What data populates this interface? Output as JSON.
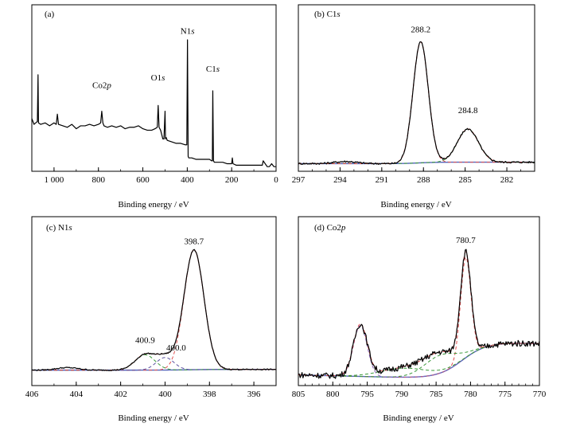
{
  "figure": {
    "panels": [
      {
        "id": "a",
        "label": "(a)",
        "xlabel": "Binding energy / eV",
        "xlim": [
          1100,
          0
        ],
        "xticks": [
          1000,
          800,
          600,
          400,
          200,
          0
        ],
        "xtick_labels": [
          "1 000",
          "800",
          "600",
          "400",
          "200",
          "0"
        ],
        "minor_step": 100,
        "peak_labels": [
          {
            "text_main": "Co2",
            "text_it": "p",
            "x": 785,
            "y": 0.55
          },
          {
            "text_main": "O1",
            "text_it": "s",
            "x": 532,
            "y": 0.6
          },
          {
            "text_main": "N1",
            "text_it": "s",
            "x": 399,
            "y": 0.92
          },
          {
            "text_main": "C1",
            "text_it": "s",
            "x": 285,
            "y": 0.66
          }
        ]
      },
      {
        "id": "b",
        "label": "(b) C1",
        "label_it": "s",
        "xlabel": "Binding energy / eV",
        "xlim": [
          297,
          280
        ],
        "xticks": [
          297,
          294,
          291,
          288,
          285,
          282
        ],
        "xtick_labels": [
          "297",
          "294",
          "291",
          "288",
          "285",
          "282"
        ],
        "minor_step": 1,
        "peak_labels": [
          {
            "text_main": "288.2",
            "x": 288.2,
            "y": 0.93
          },
          {
            "text_main": "284.8",
            "x": 284.8,
            "y": 0.37
          }
        ]
      },
      {
        "id": "c",
        "label": "(c) N1",
        "label_it": "s",
        "xlabel": "Binding energy / eV",
        "xlim": [
          406,
          395
        ],
        "xticks": [
          406,
          404,
          402,
          400,
          398,
          396
        ],
        "xtick_labels": [
          "406",
          "404",
          "402",
          "400",
          "398",
          "396"
        ],
        "minor_step": 1,
        "peak_labels": [
          {
            "text_main": "398.7",
            "x": 398.7,
            "y": 0.93
          },
          {
            "text_main": "400.9",
            "x": 400.9,
            "y": 0.22
          },
          {
            "text_main": "400.0",
            "x": 399.5,
            "y": 0.165
          }
        ]
      },
      {
        "id": "d",
        "label": "(d) Co2",
        "label_it": "p",
        "xlabel": "Binding energy / eV",
        "xlim": [
          805,
          770
        ],
        "xticks": [
          805,
          800,
          795,
          790,
          785,
          780,
          775,
          770
        ],
        "xtick_labels": [
          "805",
          "800",
          "795",
          "790",
          "785",
          "780",
          "775",
          "770"
        ],
        "minor_step": 1,
        "peak_labels": [
          {
            "text_main": "780.7",
            "x": 780.7,
            "y": 0.93
          }
        ]
      }
    ]
  },
  "chart_data": [
    {
      "type": "line",
      "panel": "a",
      "title": "(a)",
      "xlabel": "Binding energy / eV",
      "ylabel": "",
      "xlim": [
        1100,
        0
      ],
      "ylim": [
        0,
        1
      ],
      "yaxis_ticks": false,
      "grid": false,
      "annotations": [
        "Co2p",
        "O1s",
        "N1s",
        "C1s"
      ],
      "series": [
        {
          "color": "#000000",
          "style": "solid",
          "x": [
            1100,
            1090,
            1075,
            1072,
            1070,
            1060,
            1040,
            1020,
            1000,
            990,
            985,
            980,
            960,
            940,
            920,
            900,
            880,
            860,
            840,
            820,
            800,
            790,
            785,
            780,
            775,
            760,
            740,
            720,
            700,
            680,
            660,
            640,
            620,
            600,
            580,
            560,
            545,
            535,
            531,
            527,
            520,
            510,
            505,
            500,
            498,
            495,
            490,
            470,
            450,
            430,
            410,
            402,
            399,
            396,
            393,
            380,
            360,
            340,
            320,
            300,
            290,
            287,
            285,
            282,
            278,
            260,
            240,
            220,
            210,
            200,
            197,
            194,
            180,
            160,
            140,
            120,
            100,
            80,
            70,
            62,
            58,
            40,
            30,
            20,
            10,
            0
          ],
          "y": [
            0.34,
            0.3,
            0.32,
            0.64,
            0.31,
            0.3,
            0.31,
            0.29,
            0.31,
            0.3,
            0.37,
            0.3,
            0.29,
            0.28,
            0.3,
            0.27,
            0.29,
            0.29,
            0.3,
            0.29,
            0.3,
            0.31,
            0.39,
            0.31,
            0.29,
            0.28,
            0.29,
            0.28,
            0.29,
            0.27,
            0.28,
            0.28,
            0.29,
            0.27,
            0.26,
            0.26,
            0.27,
            0.28,
            0.43,
            0.28,
            0.26,
            0.2,
            0.2,
            0.39,
            0.2,
            0.21,
            0.19,
            0.18,
            0.17,
            0.17,
            0.16,
            0.16,
            0.88,
            0.08,
            0.07,
            0.07,
            0.06,
            0.06,
            0.06,
            0.06,
            0.05,
            0.05,
            0.53,
            0.05,
            0.04,
            0.04,
            0.04,
            0.03,
            0.03,
            0.03,
            0.07,
            0.03,
            0.02,
            0.02,
            0.02,
            0.02,
            0.02,
            0.02,
            0.02,
            0.02,
            0.05,
            0.01,
            0.01,
            0.03,
            0.01,
            0.01
          ]
        }
      ]
    },
    {
      "type": "line",
      "panel": "b",
      "title": "(b) C1s",
      "xlabel": "Binding energy / eV",
      "ylabel": "",
      "xlim": [
        297,
        280
      ],
      "ylim": [
        0,
        1
      ],
      "yaxis_ticks": false,
      "grid": false,
      "annotations": [
        "288.2",
        "284.8"
      ],
      "baseline": {
        "start": 0.03,
        "end": 0.02,
        "rise_center": 288.3,
        "rise_width": 0.6,
        "rise": 0.01
      },
      "components": [
        {
          "center": 288.2,
          "amp": 0.84,
          "sigma": 0.55,
          "color": "#e05050",
          "style": "dashed"
        },
        {
          "center": 284.8,
          "amp": 0.23,
          "sigma": 0.75,
          "color": "#3a9a3a",
          "style": "dashed"
        }
      ],
      "sum": {
        "color": "#d94848",
        "style": "dashed"
      },
      "background_curve": {
        "color": "#5566bb",
        "style": "solid"
      },
      "experimental": {
        "color": "#000000",
        "style": "solid",
        "noise": 0.006,
        "extra_bumps": [
          {
            "center": 293.6,
            "amp": 0.015,
            "sigma": 0.8
          }
        ]
      }
    },
    {
      "type": "line",
      "panel": "c",
      "title": "(c) N1s",
      "xlabel": "Binding energy / eV",
      "ylabel": "",
      "xlim": [
        406,
        395
      ],
      "ylim": [
        0,
        1
      ],
      "yaxis_ticks": false,
      "grid": false,
      "annotations": [
        "398.7",
        "400.9",
        "400.0"
      ],
      "baseline": {
        "start": 0.03,
        "end": 0.025,
        "rise_center": 399.0,
        "rise_width": 0.5,
        "rise": 0.0
      },
      "components": [
        {
          "center": 398.7,
          "amp": 0.86,
          "sigma": 0.45,
          "color": "#e05050",
          "style": "dashed"
        },
        {
          "center": 400.9,
          "amp": 0.11,
          "sigma": 0.45,
          "color": "#3a9a3a",
          "style": "dashed"
        },
        {
          "center": 400.0,
          "amp": 0.09,
          "sigma": 0.4,
          "color": "#5a4fa0",
          "style": "dashed"
        }
      ],
      "sum": {
        "color": "#d94848",
        "style": "dashed"
      },
      "background_curve": {
        "color": "#5566bb",
        "style": "solid"
      },
      "experimental": {
        "color": "#000000",
        "style": "solid",
        "noise": 0.004,
        "extra_bumps": [
          {
            "center": 404.4,
            "amp": 0.018,
            "sigma": 0.5
          }
        ]
      }
    },
    {
      "type": "line",
      "panel": "d",
      "title": "(d) Co2p",
      "xlabel": "Binding energy / eV",
      "ylabel": "",
      "xlim": [
        805,
        770
      ],
      "ylim": [
        0,
        1
      ],
      "yaxis_ticks": false,
      "grid": false,
      "annotations": [
        "780.7"
      ],
      "baseline": {
        "start": 0.3,
        "end": 0.05,
        "rise_center": 781.2,
        "rise_width": 1.8,
        "rise": 0.0,
        "slope": 0.004
      },
      "components": [
        {
          "center": 780.7,
          "amp": 0.67,
          "sigma": 0.75,
          "color": "#e05050",
          "style": "dashed"
        },
        {
          "center": 784.4,
          "amp": 0.12,
          "sigma": 2.4,
          "color": "#3a9a3a",
          "style": "dashed"
        },
        {
          "center": 796.0,
          "amp": 0.34,
          "sigma": 1.0,
          "color": "#8a63b8",
          "style": "dashed"
        },
        {
          "center": 789.5,
          "amp": 0.06,
          "sigma": 3.5,
          "color": "#3a9a3a",
          "style": "dashed"
        }
      ],
      "sum": {
        "color": "#d94848",
        "style": "dashed"
      },
      "background_curve": {
        "color": "#5566bb",
        "style": "solid"
      },
      "experimental": {
        "color": "#000000",
        "style": "solid",
        "noise": 0.02,
        "extra_bumps": []
      }
    }
  ]
}
